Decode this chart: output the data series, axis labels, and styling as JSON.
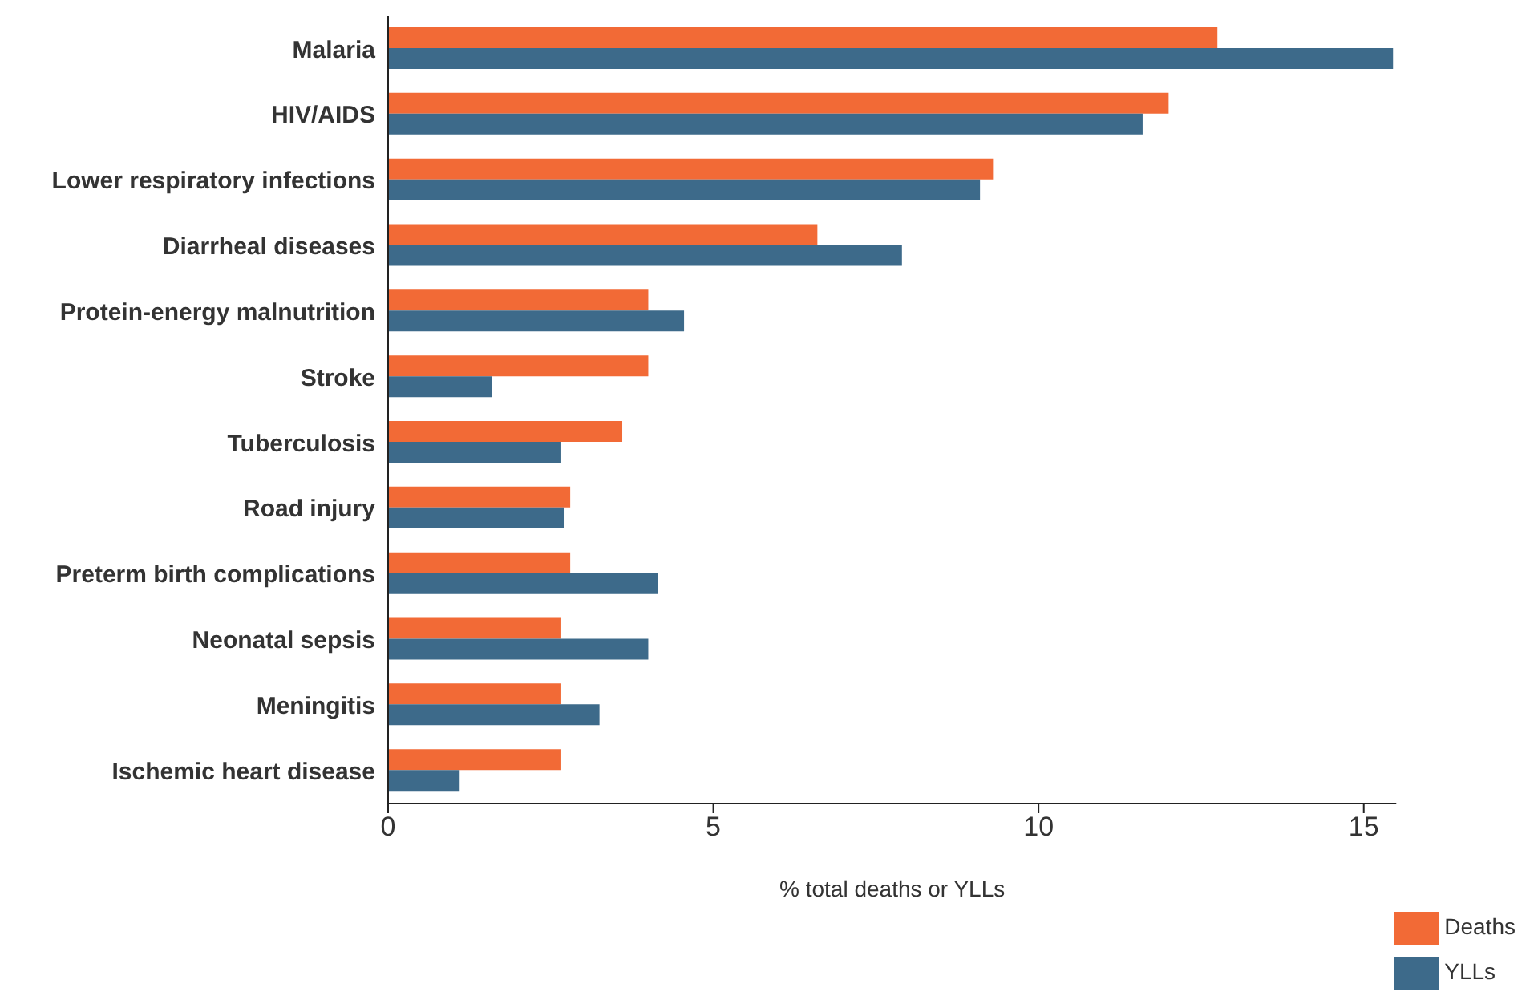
{
  "chart_data": {
    "type": "bar",
    "orientation": "horizontal",
    "xlabel": "% total deaths or YLLs",
    "categories": [
      "Malaria",
      "HIV/AIDS",
      "Lower respiratory infections",
      "Diarrheal diseases",
      "Protein-energy malnutrition",
      "Stroke",
      "Tuberculosis",
      "Road injury",
      "Preterm birth complications",
      "Neonatal sepsis",
      "Meningitis",
      "Ischemic heart disease"
    ],
    "series": [
      {
        "name": "Deaths",
        "color": "#f26a36",
        "values": [
          12.75,
          12.0,
          9.3,
          6.6,
          4.0,
          4.0,
          3.6,
          2.8,
          2.8,
          2.65,
          2.65,
          2.65
        ]
      },
      {
        "name": "YLLs",
        "color": "#3d6a8a",
        "values": [
          15.45,
          11.6,
          9.1,
          7.9,
          4.55,
          1.6,
          2.65,
          2.7,
          4.15,
          4.0,
          3.25,
          1.1
        ]
      }
    ],
    "xlim": [
      0,
      15.5
    ],
    "xticks": [
      0,
      5,
      10,
      15
    ],
    "legend": "bottom right"
  }
}
